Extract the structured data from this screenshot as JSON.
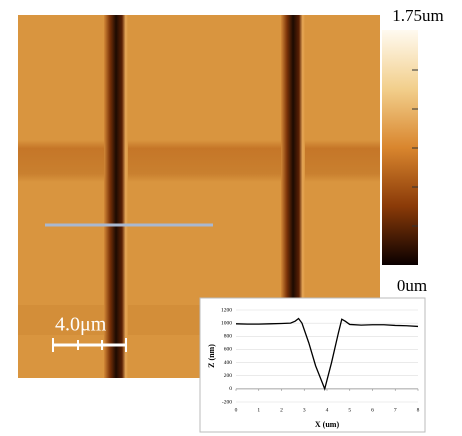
{
  "colorbar": {
    "max_label": "1.75um",
    "min_label": "0um"
  },
  "scale_bar": {
    "label": "4.0μm"
  },
  "chart_data": {
    "type": "line",
    "color": "#000000",
    "x": [
      0,
      0.5,
      1,
      1.5,
      2,
      2.4,
      2.6,
      2.75,
      2.9,
      3.2,
      3.5,
      3.9,
      4.2,
      4.5,
      4.65,
      4.8,
      5.0,
      5.5,
      6,
      6.5,
      7,
      7.5,
      8
    ],
    "values": [
      990,
      985,
      985,
      990,
      995,
      1000,
      1030,
      1070,
      1000,
      700,
      350,
      0,
      400,
      850,
      1060,
      1030,
      980,
      970,
      975,
      975,
      965,
      960,
      950
    ],
    "xlim": [
      0,
      8
    ],
    "ylim": [
      -200,
      1200
    ],
    "xticks": [
      0,
      1,
      2,
      3,
      4,
      5,
      6,
      7,
      8
    ],
    "yticks": [
      -200,
      0,
      200,
      400,
      600,
      800,
      1000,
      1200
    ],
    "xlabel": "X (um)",
    "ylabel": "Z (nm)",
    "grid": true
  }
}
